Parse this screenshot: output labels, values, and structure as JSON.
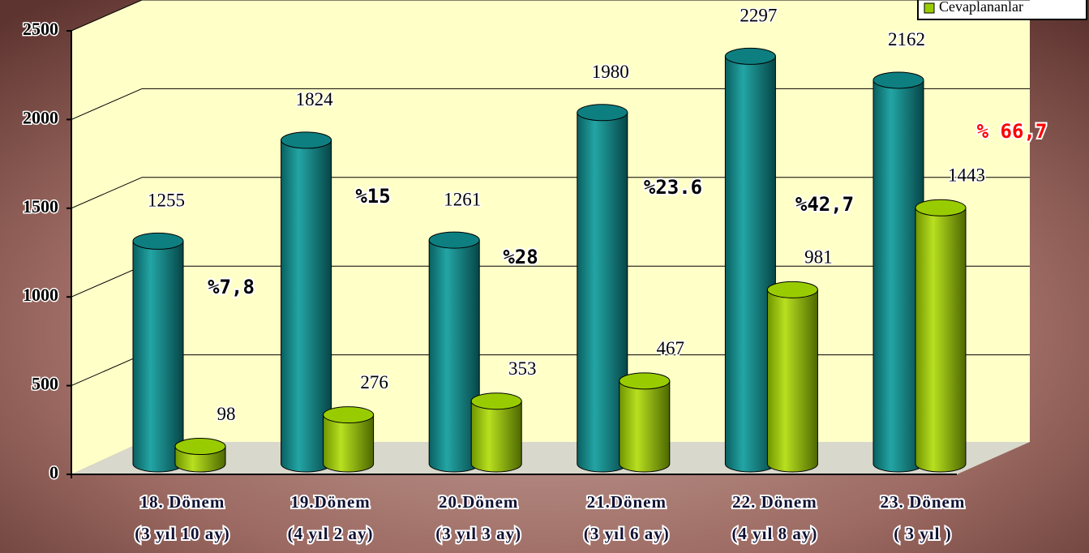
{
  "chart_data": {
    "type": "bar3d",
    "categories": [
      "18. Dönem",
      "19.Dönem",
      "20.Dönem",
      "21.Dönem",
      "22. Dönem",
      "23. Dönem"
    ],
    "category_notes": [
      "(3 yıl 10 ay)",
      "(4 yıl 2 ay)",
      "(3 yıl 3 ay)",
      "(3 yıl 6 ay)",
      "(4 yıl 8 ay)",
      "( 3 yıl )"
    ],
    "series": [
      {
        "color": "#0e7f80",
        "values": [
          1255,
          1824,
          1261,
          1980,
          2297,
          2162
        ]
      },
      {
        "name": "Cevaplananlar",
        "color": "#99cc00",
        "values": [
          98,
          276,
          353,
          467,
          981,
          1443
        ]
      }
    ],
    "annotations": [
      {
        "text": "%7,8",
        "color": "#000000"
      },
      {
        "text": "%15",
        "color": "#000000"
      },
      {
        "text": "%28",
        "color": "#000000"
      },
      {
        "text": "%23.6",
        "color": "#000000"
      },
      {
        "text": "%42,7",
        "color": "#000000"
      },
      {
        "text": "% 66,7",
        "color": "#ff0000"
      }
    ],
    "ylim": [
      0,
      2500
    ],
    "yticks": [
      0,
      500,
      1000,
      1500,
      2000,
      2500
    ],
    "grid": true
  }
}
